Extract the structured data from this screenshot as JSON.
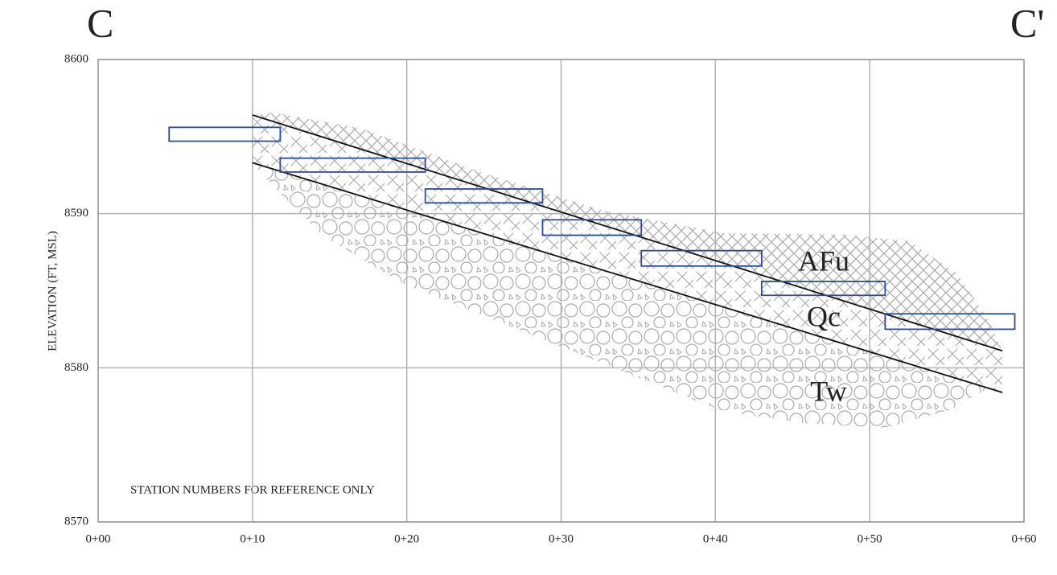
{
  "chart_data": {
    "type": "cross-section",
    "section_start": "C",
    "section_end": "C'",
    "y_label": "ELEVATION (FT, MSL)",
    "note": "STATION NUMBERS FOR REFERENCE ONLY",
    "units": [
      "AFu",
      "Qc",
      "Tw"
    ],
    "xlim": [
      0,
      60
    ],
    "xticks": [
      {
        "value": 0,
        "label": "0+00"
      },
      {
        "value": 10,
        "label": "0+10"
      },
      {
        "value": 20,
        "label": "0+20"
      },
      {
        "value": 30,
        "label": "0+30"
      },
      {
        "value": 40,
        "label": "0+40"
      },
      {
        "value": 50,
        "label": "0+50"
      },
      {
        "value": 60,
        "label": "0+60"
      }
    ],
    "ylim": [
      8570,
      8600
    ],
    "yticks": [
      8570,
      8580,
      8590,
      8600
    ],
    "grid": true,
    "rect_color": "#2e4a9e",
    "rectangles": [
      {
        "x0": 4.6,
        "x1": 11.8,
        "y0": 8594.7,
        "y1": 8595.6
      },
      {
        "x0": 11.8,
        "x1": 21.2,
        "y0": 8592.7,
        "y1": 8593.6
      },
      {
        "x0": 21.2,
        "x1": 28.8,
        "y0": 8590.7,
        "y1": 8591.6
      },
      {
        "x0": 28.8,
        "x1": 35.2,
        "y0": 8588.6,
        "y1": 8589.6
      },
      {
        "x0": 35.2,
        "x1": 43.0,
        "y0": 8586.6,
        "y1": 8587.6
      },
      {
        "x0": 43.0,
        "x1": 51.0,
        "y0": 8584.7,
        "y1": 8585.6
      },
      {
        "x0": 51.0,
        "x1": 59.4,
        "y0": 8582.5,
        "y1": 8583.5
      }
    ],
    "line_color": "#111111",
    "lines": [
      {
        "x": [
          10.0,
          58.6
        ],
        "y": [
          8596.4,
          8581.1
        ]
      },
      {
        "x": [
          10.0,
          58.6
        ],
        "y": [
          8593.3,
          8578.4
        ]
      }
    ]
  }
}
